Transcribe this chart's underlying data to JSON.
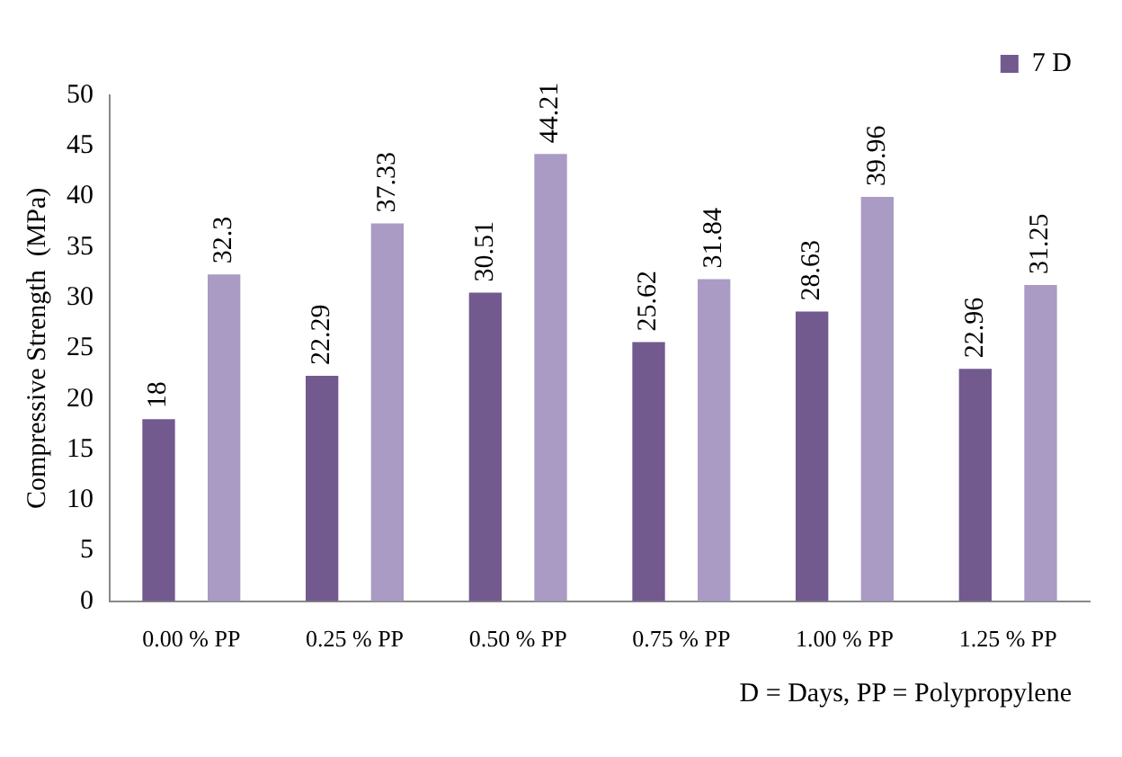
{
  "chart_data": {
    "type": "bar",
    "ylabel": "Compressive Strength  (MPa)",
    "categories": [
      "0.00 % PP",
      "0.25 % PP",
      "0.50 % PP",
      "0.75 % PP",
      "1.00 % PP",
      "1.25 % PP"
    ],
    "series": [
      {
        "name": "7 D",
        "color": "#725a8e",
        "values": [
          18,
          22.29,
          30.51,
          25.62,
          28.63,
          22.96
        ]
      },
      {
        "color": "#a99bc4",
        "values": [
          32.3,
          37.33,
          44.21,
          31.84,
          39.96,
          31.25
        ]
      }
    ],
    "ylim": [
      0,
      50
    ],
    "yticks": [
      0,
      5,
      10,
      15,
      20,
      25,
      30,
      35,
      40,
      45,
      50
    ],
    "grid": false,
    "legend": "top right",
    "data_labels": true,
    "annotations": [
      "D = Days,  PP = Polypropylene"
    ]
  }
}
